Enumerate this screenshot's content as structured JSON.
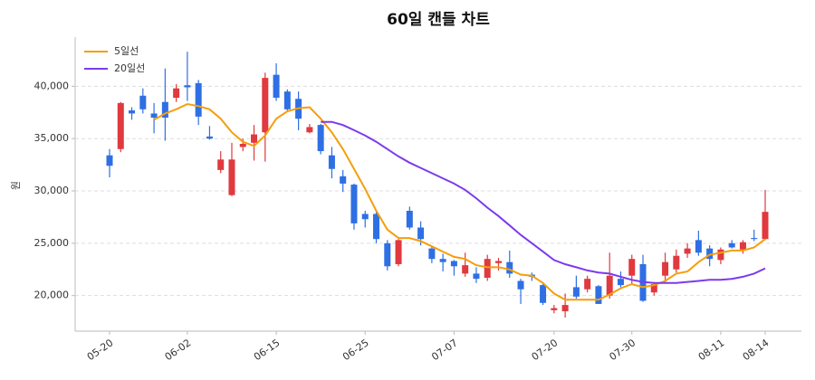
{
  "chart_data": {
    "type": "candlestick",
    "title": "60일 캔들 차트",
    "ylabel": "원",
    "categories": [
      "05-20",
      null,
      null,
      null,
      null,
      null,
      null,
      "06-02",
      null,
      null,
      null,
      null,
      null,
      null,
      null,
      "06-15",
      null,
      null,
      null,
      null,
      null,
      null,
      null,
      "06-25",
      null,
      null,
      null,
      null,
      null,
      null,
      null,
      "07-07",
      null,
      null,
      null,
      null,
      null,
      null,
      null,
      null,
      "07-20",
      null,
      null,
      null,
      null,
      null,
      null,
      "07-30",
      null,
      null,
      null,
      null,
      null,
      null,
      null,
      "08-11",
      null,
      null,
      null,
      "08-14"
    ],
    "open": [
      33400,
      34000,
      37700,
      39100,
      37400,
      38500,
      38900,
      40100,
      40300,
      35200,
      32000,
      29600,
      34200,
      34600,
      35600,
      41100,
      39500,
      38800,
      35600,
      36300,
      33400,
      31400,
      30600,
      27800,
      27800,
      25000,
      23000,
      28100,
      26500,
      24500,
      23500,
      23300,
      22100,
      22100,
      21700,
      23100,
      23200,
      21400,
      22000,
      21000,
      18600,
      18500,
      20800,
      20600,
      20900,
      20000,
      21600,
      21900,
      23000,
      20300,
      21900,
      22500,
      24000,
      25300,
      24500,
      23400,
      25000,
      24400,
      25500,
      25400
    ],
    "high": [
      34000,
      38500,
      38000,
      39800,
      38400,
      41700,
      40200,
      43300,
      40600,
      36200,
      33800,
      34600,
      35000,
      36300,
      41300,
      42200,
      39700,
      39500,
      36400,
      36400,
      34200,
      32000,
      30700,
      28100,
      28100,
      25300,
      25400,
      28500,
      27100,
      24700,
      24000,
      23400,
      24100,
      22700,
      23900,
      23600,
      24300,
      21600,
      22200,
      21200,
      19100,
      20200,
      21900,
      21900,
      21000,
      24100,
      22300,
      23900,
      23900,
      21300,
      24100,
      24400,
      25000,
      26200,
      24800,
      24600,
      25300,
      25300,
      26300,
      30100
    ],
    "low": [
      31300,
      33700,
      36800,
      37400,
      35500,
      34800,
      38500,
      38600,
      36300,
      34900,
      31700,
      29500,
      33800,
      32900,
      32800,
      38600,
      37600,
      35800,
      35500,
      33500,
      31200,
      29900,
      26300,
      26500,
      25000,
      22400,
      22800,
      26300,
      24800,
      23100,
      22300,
      21900,
      21800,
      21200,
      21400,
      22400,
      21700,
      19200,
      21400,
      19100,
      18300,
      17900,
      19700,
      20300,
      19200,
      19700,
      20800,
      21100,
      19400,
      20000,
      21200,
      22200,
      23600,
      23800,
      22800,
      23000,
      24500,
      24000,
      25200,
      25300
    ],
    "close": [
      32400,
      38400,
      37400,
      37800,
      37000,
      37000,
      39800,
      39900,
      37100,
      35000,
      33000,
      33000,
      34500,
      35400,
      40800,
      38900,
      37800,
      36900,
      36100,
      33800,
      32100,
      30700,
      26900,
      27300,
      25400,
      22800,
      25300,
      26500,
      25400,
      23500,
      23200,
      22800,
      22900,
      21600,
      23500,
      23300,
      22100,
      20600,
      21800,
      19300,
      18800,
      19100,
      19900,
      21600,
      19200,
      21900,
      21000,
      23500,
      19500,
      21100,
      23200,
      23800,
      24500,
      24100,
      23500,
      24400,
      24600,
      25100,
      25400,
      28000
    ],
    "up_color": "#e0393e",
    "down_color": "#2f6fe4",
    "series": [
      {
        "name": "5일선",
        "color": "#f59e0b",
        "values": [
          null,
          null,
          null,
          null,
          36800,
          37400,
          37800,
          38300,
          38100,
          37800,
          36900,
          35600,
          34700,
          34300,
          35300,
          36900,
          37600,
          37900,
          38000,
          36900,
          35600,
          34000,
          32100,
          30200,
          28100,
          26300,
          25500,
          25500,
          25200,
          24700,
          24200,
          23700,
          23500,
          22900,
          22700,
          22700,
          22500,
          22000,
          21900,
          21200,
          20200,
          19600,
          19600,
          19600,
          19600,
          20100,
          20700,
          21100,
          20800,
          21000,
          21400,
          22100,
          22300,
          23200,
          23900,
          24100,
          24300,
          24300,
          24600,
          25400
        ]
      },
      {
        "name": "20일선",
        "color": "#7c3aed",
        "values": [
          null,
          null,
          null,
          null,
          null,
          null,
          null,
          null,
          null,
          null,
          null,
          null,
          null,
          null,
          null,
          null,
          null,
          null,
          null,
          36600,
          36600,
          36300,
          35800,
          35300,
          34700,
          34000,
          33300,
          32700,
          32200,
          31700,
          31200,
          30700,
          30100,
          29300,
          28400,
          27600,
          26700,
          25800,
          25000,
          24200,
          23400,
          23000,
          22700,
          22400,
          22200,
          22100,
          21800,
          21500,
          21300,
          21200,
          21200,
          21200,
          21300,
          21400,
          21500,
          21500,
          21600,
          21800,
          22100,
          22600
        ]
      }
    ],
    "ylim": [
      16600,
      44700
    ],
    "yticks": [
      {
        "value": 20000,
        "label": "20,000"
      },
      {
        "value": 25000,
        "label": "25,000"
      },
      {
        "value": 30000,
        "label": "30,000"
      },
      {
        "value": 35000,
        "label": "35,000"
      },
      {
        "value": 40000,
        "label": "40,000"
      }
    ],
    "grid": true,
    "legend": "upper left"
  }
}
